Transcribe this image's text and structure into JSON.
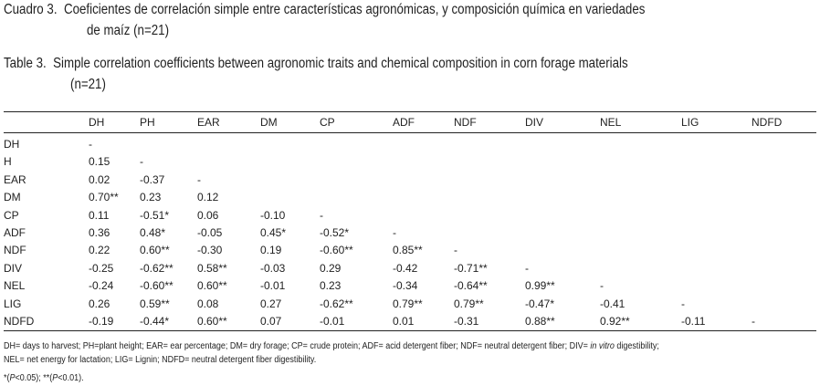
{
  "caption_es": {
    "label": "Cuadro 3.",
    "line1": "Coeficientes de correlación simple entre características agronómicas, y composición química en variedades",
    "line2": "de maíz (n=21)"
  },
  "caption_en": {
    "label": "Table 3.",
    "line1": "Simple correlation coefficients between agronomic traits and chemical composition in corn forage materials",
    "line2": "(n=21)"
  },
  "table": {
    "header": [
      "DH",
      "PH",
      "EAR",
      "DM",
      "CP",
      "ADF",
      "NDF",
      "DIV",
      "NEL",
      "LIG",
      "NDFD"
    ],
    "rows": [
      [
        "DH",
        "-"
      ],
      [
        "H",
        "0.15",
        "-"
      ],
      [
        "EAR",
        "0.02",
        "-0.37",
        "-"
      ],
      [
        "DM",
        "0.70**",
        "0.23",
        "0.12"
      ],
      [
        "CP",
        "0.11",
        "-0.51*",
        "0.06",
        "-0.10",
        "-"
      ],
      [
        "ADF",
        "0.36",
        "0.48*",
        "-0.05",
        "0.45*",
        "-0.52*",
        "-"
      ],
      [
        "NDF",
        "0.22",
        "0.60**",
        "-0.30",
        "0.19",
        "-0.60**",
        "0.85**",
        "-"
      ],
      [
        "DIV",
        "-0.25",
        "-0.62**",
        "0.58**",
        "-0.03",
        "0.29",
        "-0.42",
        "-0.71**",
        "-"
      ],
      [
        "NEL",
        "-0.24",
        "-0.60**",
        "0.60**",
        "-0.01",
        "0.23",
        "-0.34",
        "-0.64**",
        "0.99**",
        "-"
      ],
      [
        "LIG",
        "0.26",
        "0.59**",
        "0.08",
        "0.27",
        "-0.62**",
        "0.79**",
        "0.79**",
        "-0.47*",
        "-0.41",
        "-"
      ],
      [
        "NDFD",
        "-0.19",
        "-0.44*",
        "0.60**",
        "0.07",
        "-0.01",
        "0.01",
        "-0.31",
        "0.88**",
        "0.92**",
        "-0.11",
        "-"
      ]
    ]
  },
  "footnotes": {
    "abbrev1": "DH= days to harvest; PH=plant height; EAR= ear percentage; DM= dry forage; CP= crude protein; ADF= acid detergent fiber; NDF= neutral detergent fiber; DIV=",
    "abbrev1_italic": "in vitro",
    "abbrev1_end": "digestibility;",
    "abbrev2": "NEL= net energy for lactation; LIG= Lignin; NDFD= neutral detergent fiber digestibility.",
    "sig": [
      "*(",
      "P",
      "<0.05); **(",
      "P",
      "<0.01)."
    ]
  }
}
